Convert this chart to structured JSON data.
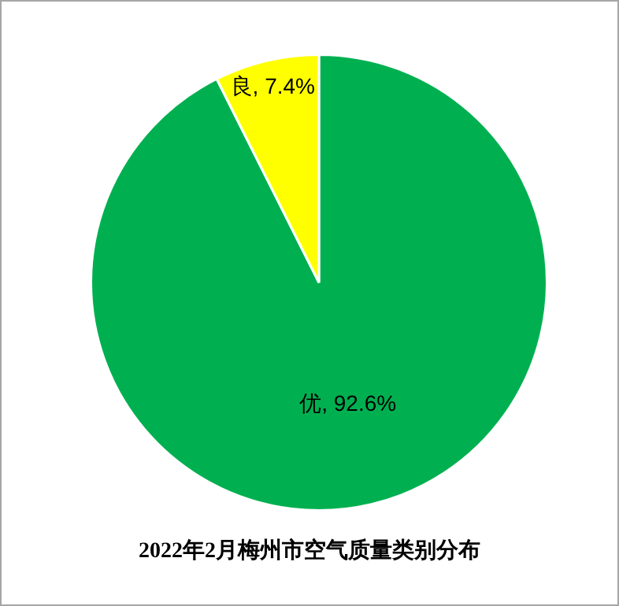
{
  "chart_data": {
    "type": "pie",
    "title": "2022年2月梅州市空气质量类别分布",
    "categories": [
      "优",
      "良"
    ],
    "values": [
      92.6,
      7.4
    ],
    "colors": [
      "#00b050",
      "#ffff00"
    ],
    "value_labels": [
      "92.6%",
      "7.4%"
    ],
    "legend": false
  }
}
